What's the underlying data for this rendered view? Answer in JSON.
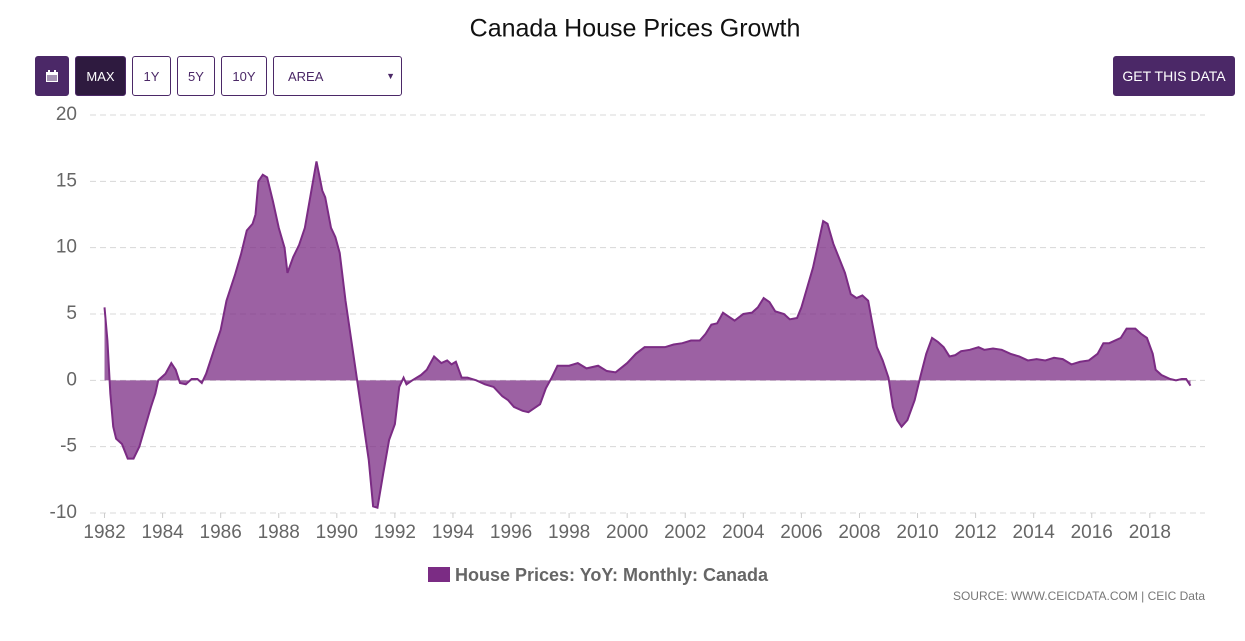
{
  "controls": {
    "buttons": [
      "MAX",
      "1Y",
      "5Y",
      "10Y"
    ],
    "select": "AREA",
    "cta": "GET THIS DATA"
  },
  "chart_data": {
    "type": "area",
    "title": "Canada House Prices Growth",
    "x": [
      1982.0,
      1982.1,
      1982.2,
      1982.3,
      1982.4,
      1982.6,
      1982.8,
      1983.0,
      1983.2,
      1983.4,
      1983.6,
      1983.75,
      1983.85,
      1984.1,
      1984.3,
      1984.45,
      1984.6,
      1984.8,
      1985.0,
      1985.2,
      1985.35,
      1985.5,
      1985.8,
      1986.0,
      1986.2,
      1986.5,
      1986.7,
      1986.9,
      1987.1,
      1987.2,
      1987.3,
      1987.45,
      1987.6,
      1987.8,
      1988.0,
      1988.2,
      1988.3,
      1988.5,
      1988.7,
      1988.9,
      1989.1,
      1989.3,
      1989.5,
      1989.6,
      1989.8,
      1989.95,
      1990.1,
      1990.3,
      1990.5,
      1990.7,
      1990.9,
      1991.1,
      1991.25,
      1991.4,
      1991.6,
      1991.8,
      1992.0,
      1992.15,
      1992.3,
      1992.4,
      1992.6,
      1992.9,
      1993.1,
      1993.35,
      1993.6,
      1993.8,
      1993.95,
      1994.1,
      1994.3,
      1994.5,
      1994.8,
      1995.1,
      1995.4,
      1995.7,
      1995.9,
      1996.1,
      1996.4,
      1996.6,
      1996.8,
      1997.0,
      1997.2,
      1997.4,
      1997.6,
      1998.0,
      1998.3,
      1998.6,
      1999.0,
      1999.3,
      1999.6,
      2000.0,
      2000.3,
      2000.6,
      2001.0,
      2001.3,
      2001.6,
      2001.9,
      2002.2,
      2002.5,
      2002.7,
      2002.9,
      2003.1,
      2003.3,
      2003.5,
      2003.7,
      2004.0,
      2004.3,
      2004.5,
      2004.7,
      2004.9,
      2005.1,
      2005.4,
      2005.6,
      2005.85,
      2006.0,
      2006.2,
      2006.4,
      2006.6,
      2006.75,
      2006.9,
      2007.1,
      2007.3,
      2007.5,
      2007.7,
      2007.9,
      2008.1,
      2008.3,
      2008.45,
      2008.6,
      2008.8,
      2009.0,
      2009.15,
      2009.3,
      2009.45,
      2009.65,
      2009.9,
      2010.1,
      2010.3,
      2010.5,
      2010.7,
      2010.9,
      2011.1,
      2011.3,
      2011.5,
      2011.8,
      2012.1,
      2012.3,
      2012.6,
      2012.9,
      2013.2,
      2013.5,
      2013.8,
      2014.1,
      2014.4,
      2014.7,
      2015.0,
      2015.3,
      2015.6,
      2015.9,
      2016.2,
      2016.4,
      2016.6,
      2016.8,
      2017.0,
      2017.2,
      2017.5,
      2017.7,
      2017.9,
      2018.1,
      2018.2,
      2018.4,
      2018.7,
      2018.9,
      2019.1,
      2019.25,
      2019.4
    ],
    "series": [
      {
        "name": "House Prices: YoY: Monthly: Canada",
        "color": "#7b2c84",
        "values": [
          5.5,
          3,
          -1,
          -3.5,
          -4.4,
          -4.8,
          -5.9,
          -5.9,
          -5,
          -3.5,
          -2,
          -1,
          0,
          0.5,
          1.3,
          0.8,
          -0.2,
          -0.3,
          0.1,
          0.1,
          -0.2,
          0.5,
          2.5,
          3.8,
          6,
          8,
          9.5,
          11.3,
          11.8,
          12.5,
          15,
          15.5,
          15.3,
          13.5,
          11.5,
          10,
          8.1,
          9.3,
          10.2,
          11.5,
          14,
          16.5,
          14.3,
          13.8,
          11.5,
          10.8,
          9.6,
          6,
          3,
          0,
          -3,
          -6,
          -9.5,
          -9.6,
          -7,
          -4.5,
          -3.3,
          -0.5,
          0.2,
          -0.3,
          0,
          0.4,
          0.8,
          1.8,
          1.3,
          1.5,
          1.2,
          1.4,
          0.2,
          0.2,
          0,
          -0.3,
          -0.5,
          -1.2,
          -1.5,
          -2,
          -2.3,
          -2.4,
          -2.1,
          -1.8,
          -0.6,
          0.2,
          1.1,
          1.1,
          1.3,
          0.9,
          1.1,
          0.7,
          0.6,
          1.3,
          2,
          2.5,
          2.5,
          2.5,
          2.7,
          2.8,
          3,
          3,
          3.5,
          4.2,
          4.3,
          5.1,
          4.8,
          4.5,
          5,
          5.1,
          5.5,
          6.2,
          5.9,
          5.2,
          5,
          4.6,
          4.7,
          5.5,
          7,
          8.5,
          10.5,
          12,
          11.8,
          10.3,
          9.2,
          8.1,
          6.5,
          6.2,
          6.4,
          6,
          4.2,
          2.5,
          1.5,
          0.2,
          -2,
          -3,
          -3.5,
          -3,
          -1.5,
          0.3,
          2,
          3.2,
          2.9,
          2.5,
          1.8,
          1.9,
          2.2,
          2.3,
          2.5,
          2.3,
          2.4,
          2.3,
          2,
          1.8,
          1.5,
          1.6,
          1.5,
          1.7,
          1.6,
          1.2,
          1.4,
          1.5,
          2,
          2.8,
          2.8,
          3,
          3.2,
          3.9,
          3.9,
          3.5,
          3.2,
          2,
          0.8,
          0.4,
          0.1,
          0,
          0.1,
          0.1,
          -0.4
        ]
      }
    ],
    "xlim": [
      1981.5,
      2019.9
    ],
    "xticks": [
      1982,
      1984,
      1986,
      1988,
      1990,
      1992,
      1994,
      1996,
      1998,
      2000,
      2002,
      2004,
      2006,
      2008,
      2010,
      2012,
      2014,
      2016,
      2018
    ],
    "ylim": [
      -10,
      20
    ],
    "yticks": [
      -10,
      -5,
      0,
      5,
      10,
      15,
      20
    ],
    "grid": true,
    "source": "SOURCE: WWW.CEICDATA.COM | CEIC Data"
  }
}
